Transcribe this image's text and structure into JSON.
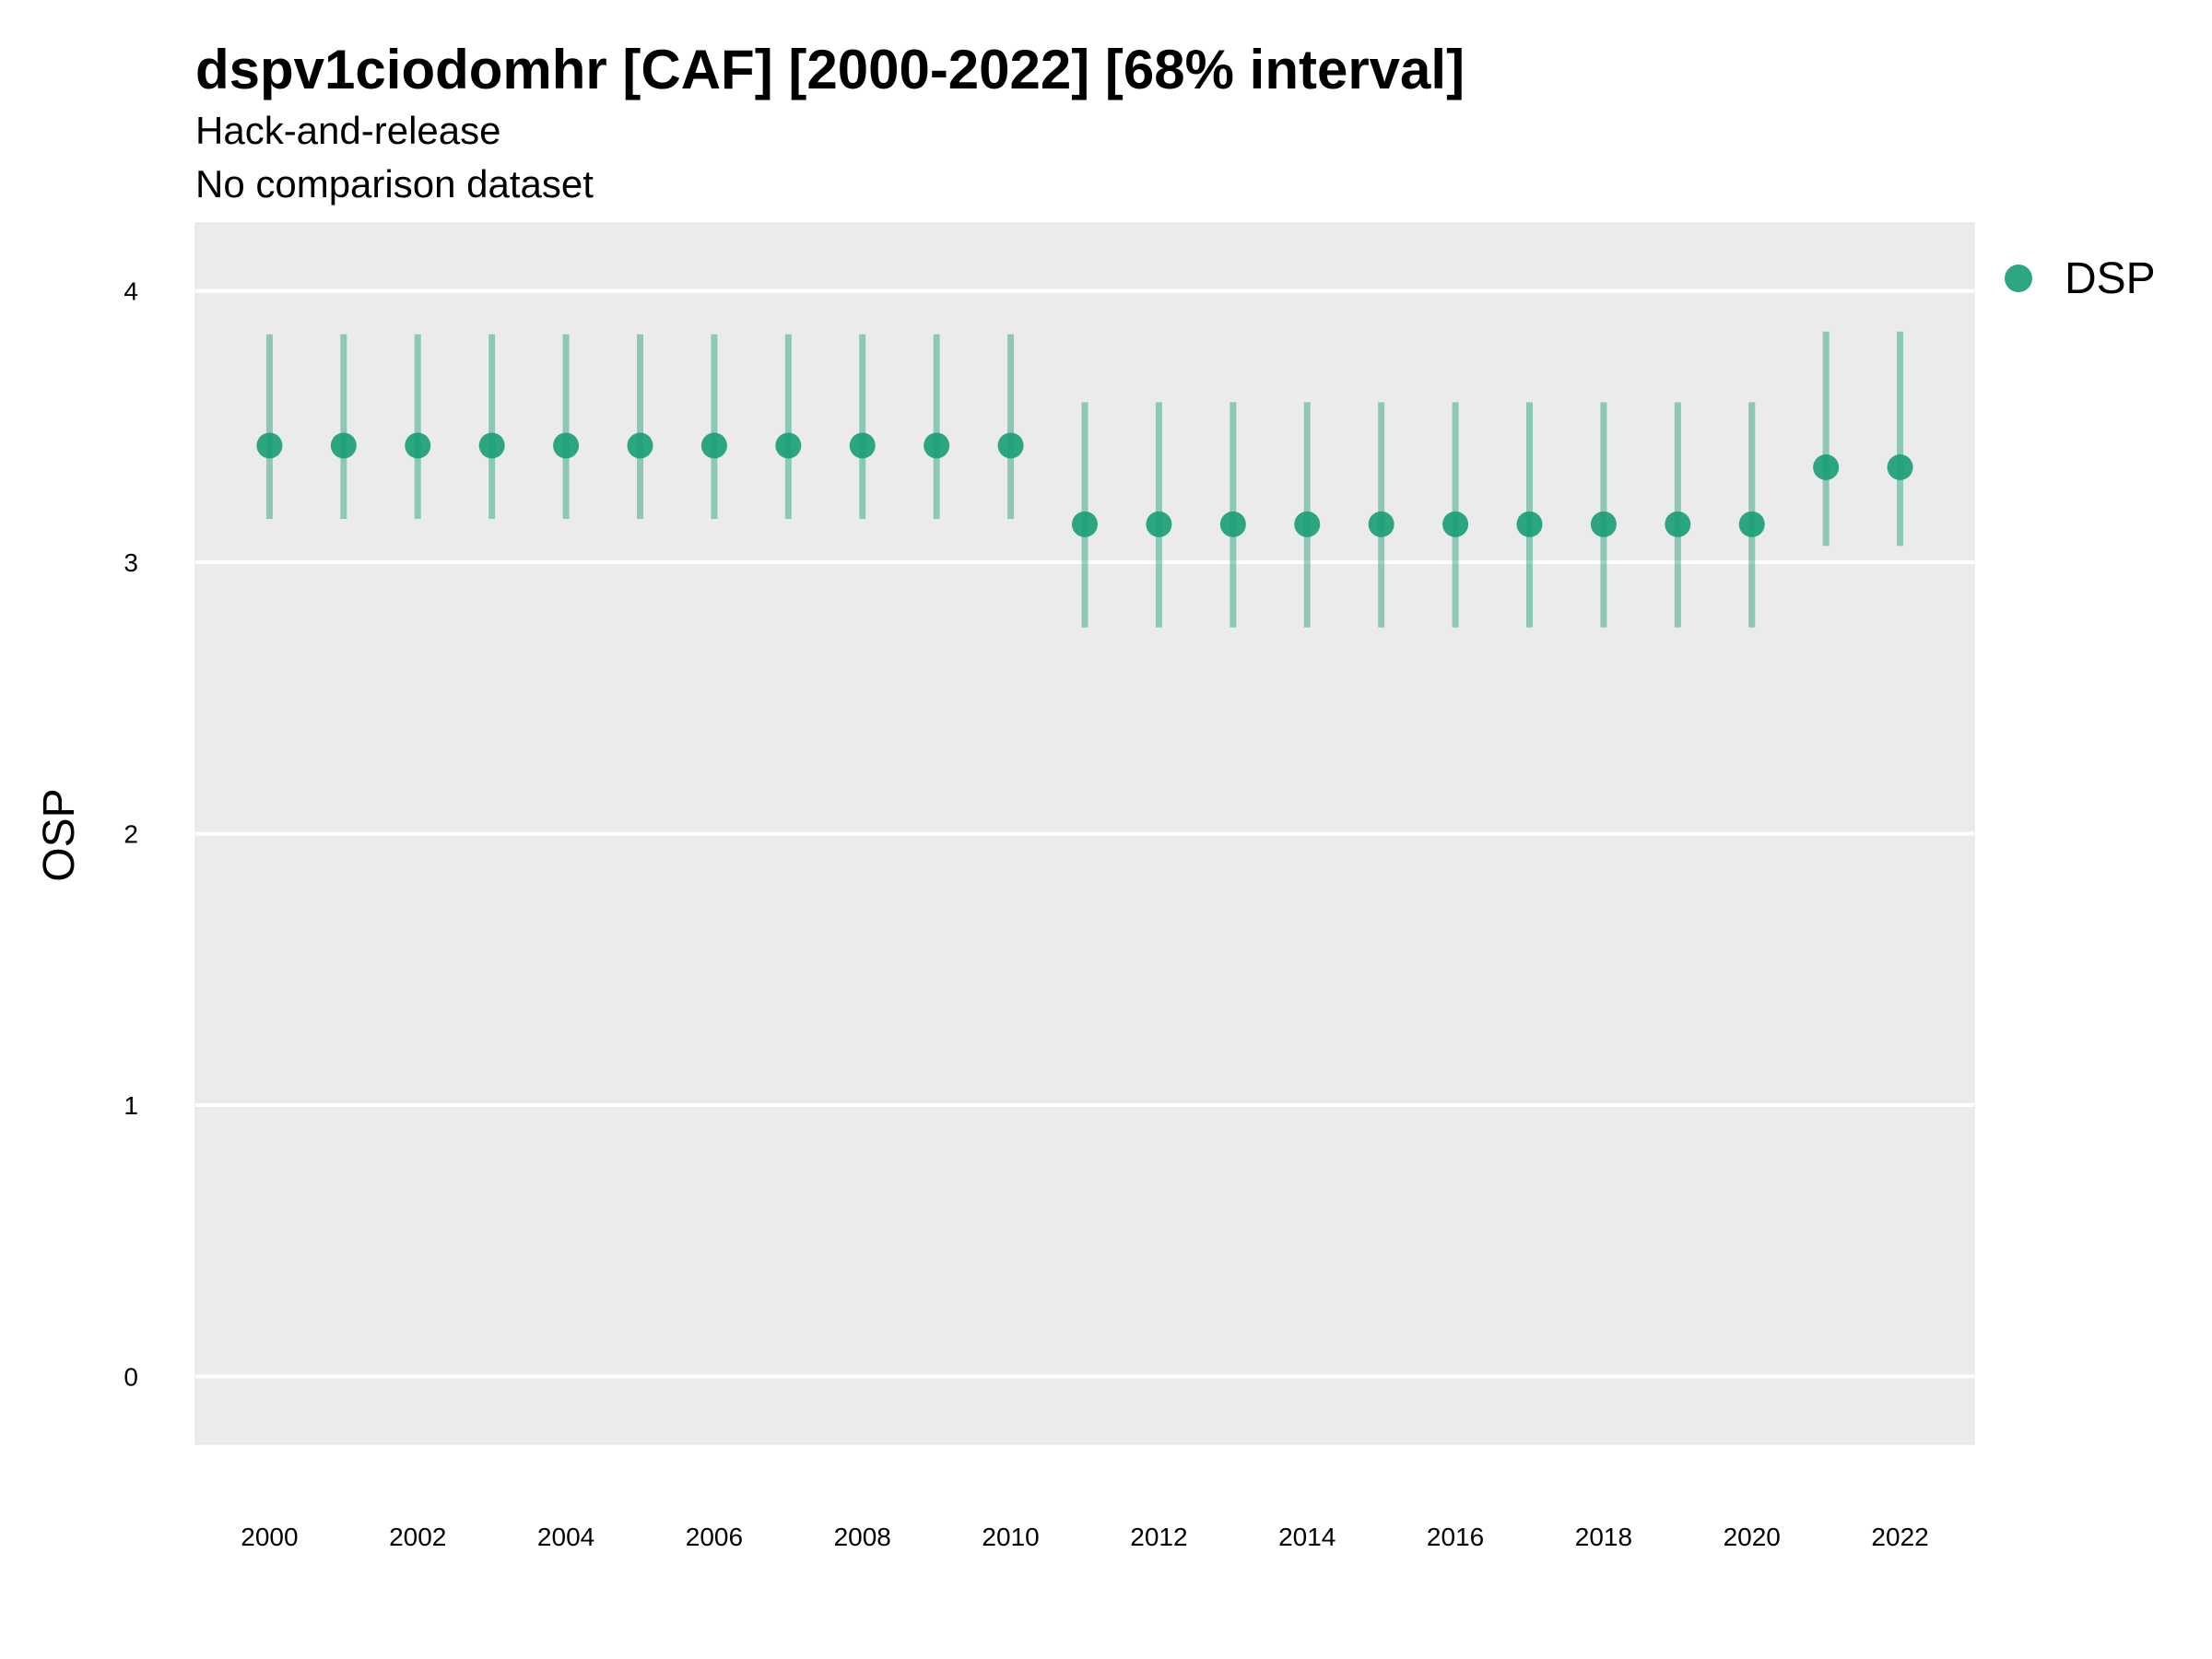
{
  "chart_data": {
    "type": "scatter",
    "title": "dspv1ciodomhr [CAF] [2000-2022] [68% interval]",
    "subtitle_lines": [
      "Hack-and-release",
      "No comparison dataset"
    ],
    "ylabel": "OSP",
    "xlabel": "",
    "ylim": [
      -0.25,
      4.25
    ],
    "xlim": [
      1999,
      2023
    ],
    "y_ticks": [
      0,
      1,
      2,
      3,
      4
    ],
    "x_ticks": [
      2000,
      2002,
      2004,
      2006,
      2008,
      2010,
      2012,
      2014,
      2016,
      2018,
      2020,
      2022
    ],
    "grid": true,
    "legend_position": "right",
    "colors": {
      "panel_background": "#EBEBEB",
      "gridline": "#FFFFFF",
      "point": "#1B9E77"
    },
    "series": [
      {
        "name": "DSP",
        "x": [
          2000,
          2001,
          2002,
          2003,
          2004,
          2005,
          2006,
          2007,
          2008,
          2009,
          2010,
          2011,
          2012,
          2013,
          2014,
          2015,
          2016,
          2017,
          2018,
          2019,
          2020,
          2021,
          2022
        ],
        "y": [
          3.43,
          3.43,
          3.43,
          3.43,
          3.43,
          3.43,
          3.43,
          3.43,
          3.43,
          3.43,
          3.43,
          3.14,
          3.14,
          3.14,
          3.14,
          3.14,
          3.14,
          3.14,
          3.14,
          3.14,
          3.14,
          3.35,
          3.35
        ],
        "lower": [
          3.16,
          3.16,
          3.16,
          3.16,
          3.16,
          3.16,
          3.16,
          3.16,
          3.16,
          3.16,
          3.16,
          2.76,
          2.76,
          2.76,
          2.76,
          2.76,
          2.76,
          2.76,
          2.76,
          2.76,
          2.76,
          3.06,
          3.06
        ],
        "upper": [
          3.84,
          3.84,
          3.84,
          3.84,
          3.84,
          3.84,
          3.84,
          3.84,
          3.84,
          3.84,
          3.84,
          3.59,
          3.59,
          3.59,
          3.59,
          3.59,
          3.59,
          3.59,
          3.59,
          3.59,
          3.59,
          3.85,
          3.85
        ]
      }
    ]
  }
}
